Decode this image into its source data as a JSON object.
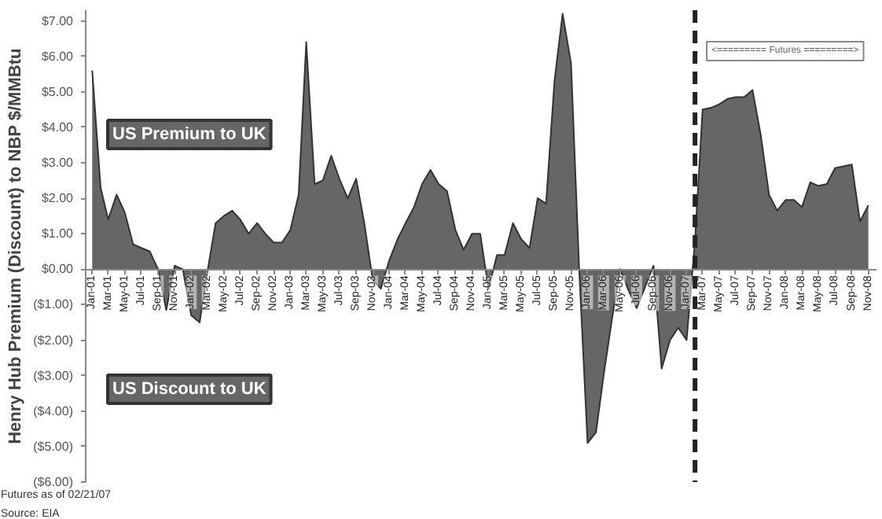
{
  "chart_data": {
    "type": "area",
    "ylabel": "Henry Hub Premium (Discount) to NBP $/MMBtu",
    "x": [
      "2001-01",
      "2001-02",
      "2001-03",
      "2001-04",
      "2001-05",
      "2001-06",
      "2001-07",
      "2001-08",
      "2001-09",
      "2001-10",
      "2001-11",
      "2001-12",
      "2002-01",
      "2002-02",
      "2002-03",
      "2002-04",
      "2002-05",
      "2002-06",
      "2002-07",
      "2002-08",
      "2002-09",
      "2002-10",
      "2002-11",
      "2002-12",
      "2003-01",
      "2003-02",
      "2003-03",
      "2003-04",
      "2003-05",
      "2003-06",
      "2003-07",
      "2003-08",
      "2003-09",
      "2003-10",
      "2003-11",
      "2003-12",
      "2004-01",
      "2004-02",
      "2004-03",
      "2004-04",
      "2004-05",
      "2004-06",
      "2004-07",
      "2004-08",
      "2004-09",
      "2004-10",
      "2004-11",
      "2004-12",
      "2005-01",
      "2005-02",
      "2005-03",
      "2005-04",
      "2005-05",
      "2005-06",
      "2005-07",
      "2005-08",
      "2005-09",
      "2005-10",
      "2005-11",
      "2005-12",
      "2006-01",
      "2006-02",
      "2006-03",
      "2006-04",
      "2006-05",
      "2006-06",
      "2006-07",
      "2006-08",
      "2006-09",
      "2006-10",
      "2006-11",
      "2006-12",
      "2007-01",
      "2007-02",
      "2007-03",
      "2007-04",
      "2007-05",
      "2007-06",
      "2007-07",
      "2007-08",
      "2007-09",
      "2007-10",
      "2007-11",
      "2007-12",
      "2008-01",
      "2008-02",
      "2008-03",
      "2008-04",
      "2008-05",
      "2008-06",
      "2008-07",
      "2008-08",
      "2008-09",
      "2008-10",
      "2008-11"
    ],
    "values": [
      5.6,
      2.3,
      1.4,
      2.1,
      1.6,
      0.7,
      0.6,
      0.5,
      0.0,
      -1.15,
      0.1,
      0.0,
      -1.3,
      -1.5,
      -0.1,
      1.3,
      1.5,
      1.65,
      1.4,
      1.0,
      1.3,
      1.0,
      0.75,
      0.75,
      1.1,
      2.1,
      6.4,
      2.4,
      2.5,
      3.2,
      2.55,
      2.0,
      2.55,
      1.3,
      -0.3,
      -0.55,
      0.25,
      0.85,
      1.3,
      1.75,
      2.4,
      2.8,
      2.4,
      2.2,
      1.1,
      0.55,
      1.0,
      1.0,
      -0.55,
      0.4,
      0.4,
      1.3,
      0.85,
      0.6,
      2.0,
      1.85,
      5.3,
      7.2,
      5.8,
      0.0,
      -4.9,
      -4.6,
      -3.0,
      -1.4,
      0.0,
      -0.6,
      -1.1,
      -0.5,
      0.1,
      -2.8,
      -2.0,
      -1.65,
      -2.0,
      0.8,
      4.5,
      4.55,
      4.65,
      4.8,
      4.85,
      4.85,
      5.05,
      3.8,
      2.1,
      1.65,
      1.95,
      1.95,
      1.75,
      2.45,
      2.35,
      2.4,
      2.85,
      2.9,
      2.95,
      1.35,
      1.8
    ],
    "color": "#666666",
    "xlim": [
      "2000-12-08",
      "2008-12"
    ],
    "xticks": [
      {
        "value": "2001-01",
        "label": "Jan-01"
      },
      {
        "value": "2001-03",
        "label": "Mar-01"
      },
      {
        "value": "2001-05",
        "label": "May-01"
      },
      {
        "value": "2001-07",
        "label": "Jul-01"
      },
      {
        "value": "2001-09",
        "label": "Sep-01"
      },
      {
        "value": "2001-11",
        "label": "Nov-01"
      },
      {
        "value": "2002-01",
        "label": "Jan-02"
      },
      {
        "value": "2002-03",
        "label": "Mar-02"
      },
      {
        "value": "2002-05",
        "label": "May-02"
      },
      {
        "value": "2002-07",
        "label": "Jul-02"
      },
      {
        "value": "2002-09",
        "label": "Sep-02"
      },
      {
        "value": "2002-11",
        "label": "Nov-02"
      },
      {
        "value": "2003-01",
        "label": "Jan-03"
      },
      {
        "value": "2003-03",
        "label": "Mar-03"
      },
      {
        "value": "2003-05",
        "label": "May-03"
      },
      {
        "value": "2003-07",
        "label": "Jul-03"
      },
      {
        "value": "2003-09",
        "label": "Sep-03"
      },
      {
        "value": "2003-11",
        "label": "Nov-03"
      },
      {
        "value": "2004-01",
        "label": "Jan-04"
      },
      {
        "value": "2004-03",
        "label": "Mar-04"
      },
      {
        "value": "2004-05",
        "label": "May-04"
      },
      {
        "value": "2004-07",
        "label": "Jul-04"
      },
      {
        "value": "2004-09",
        "label": "Sep-04"
      },
      {
        "value": "2004-11",
        "label": "Nov-04"
      },
      {
        "value": "2005-01",
        "label": "Jan-05"
      },
      {
        "value": "2005-03",
        "label": "Mar-05"
      },
      {
        "value": "2005-05",
        "label": "May-05"
      },
      {
        "value": "2005-07",
        "label": "Jul-05"
      },
      {
        "value": "2005-09",
        "label": "Sep-05"
      },
      {
        "value": "2005-11",
        "label": "Nov-05"
      },
      {
        "value": "2006-01",
        "label": "Jan-06"
      },
      {
        "value": "2006-03",
        "label": "Mar-06"
      },
      {
        "value": "2006-05",
        "label": "May-06"
      },
      {
        "value": "2006-07",
        "label": "Jul-06"
      },
      {
        "value": "2006-09",
        "label": "Sep-06"
      },
      {
        "value": "2006-11",
        "label": "Nov-06"
      },
      {
        "value": "2007-01",
        "label": "Jan-07"
      },
      {
        "value": "2007-03",
        "label": "Mar-07"
      },
      {
        "value": "2007-05",
        "label": "May-07"
      },
      {
        "value": "2007-07",
        "label": "Jul-07"
      },
      {
        "value": "2007-09",
        "label": "Sep-07"
      },
      {
        "value": "2007-11",
        "label": "Nov-07"
      },
      {
        "value": "2008-01",
        "label": "Jan-08"
      },
      {
        "value": "2008-03",
        "label": "Mar-08"
      },
      {
        "value": "2008-05",
        "label": "May-08"
      },
      {
        "value": "2008-07",
        "label": "Jul-08"
      },
      {
        "value": "2008-09",
        "label": "Sep-08"
      },
      {
        "value": "2008-11",
        "label": "Nov-08"
      }
    ],
    "ylim": [
      -6,
      7.3
    ],
    "yticks": [
      {
        "value": 7,
        "label": "$7.00"
      },
      {
        "value": 6,
        "label": "$6.00"
      },
      {
        "value": 5,
        "label": "$5.00"
      },
      {
        "value": 4,
        "label": "$4.00"
      },
      {
        "value": 3,
        "label": "$3.00"
      },
      {
        "value": 2,
        "label": "$2.00"
      },
      {
        "value": 1,
        "label": "$1.00"
      },
      {
        "value": 0,
        "label": "$0.00"
      },
      {
        "value": -1,
        "label": "($1.00)"
      },
      {
        "value": -2,
        "label": "($2.00)"
      },
      {
        "value": -3,
        "label": "($3.00)"
      },
      {
        "value": -4,
        "label": "($4.00)"
      },
      {
        "value": -5,
        "label": "($5.00)"
      },
      {
        "value": -6,
        "label": "($6.00)"
      }
    ],
    "grid": false,
    "ref_lines": [
      {
        "axis": "x",
        "value": "2007-02",
        "label": null,
        "color": "#222222",
        "line_style": "dashed"
      }
    ],
    "annotations": [
      "US Premium to UK",
      "US Discount to UK",
      "<========= Futures =========>",
      "Futures as of 02/21/07",
      "Source: EIA"
    ]
  }
}
